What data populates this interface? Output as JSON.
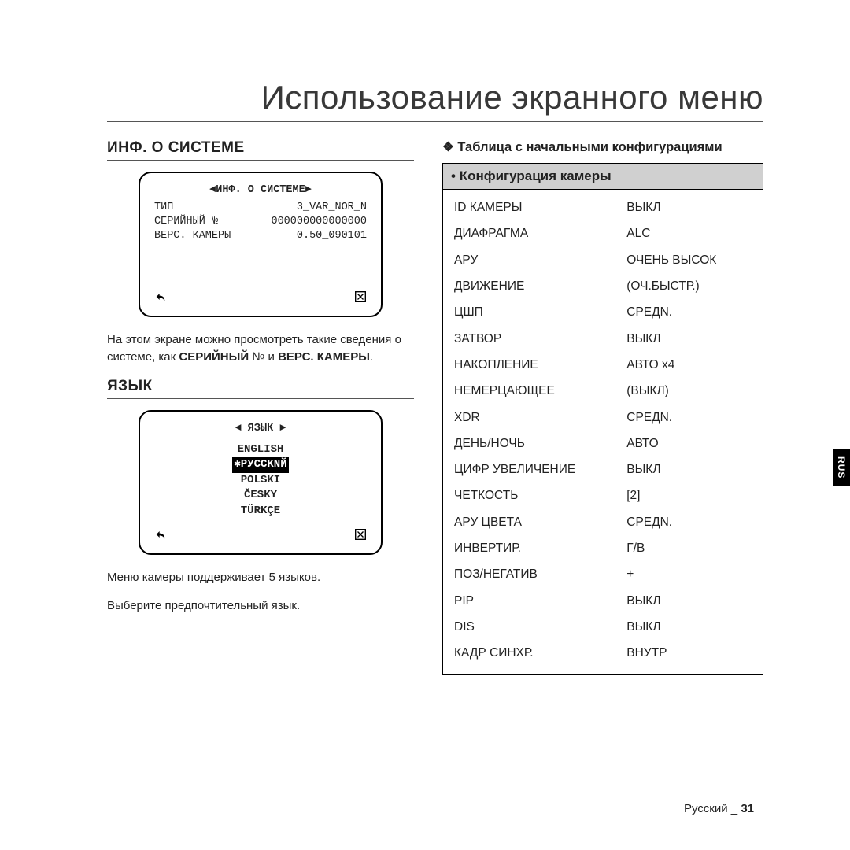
{
  "page": {
    "title": "Использование экранного меню",
    "side_tab": "RUS",
    "footer_lang": "Русский",
    "footer_sep": "_",
    "footer_page": "31"
  },
  "left": {
    "section1_heading": "ИНФ. О СИСТЕМЕ",
    "osd1": {
      "title_left_arrow": "◄",
      "title": "ИНФ. О СИСТЕМЕ",
      "title_right_arrow": "►",
      "rows": [
        {
          "k": "ТИП",
          "v": "3_VAR_NOR_N"
        },
        {
          "k": "СЕРИЙНЫЙ №",
          "v": "000000000000000"
        },
        {
          "k": "ВЕРС. КАМЕРЫ",
          "v": "0.50_090101"
        }
      ]
    },
    "desc1_pre": "На этом экране можно просмотреть такие сведения о системе, как ",
    "desc1_bold1": "СЕРИЙНЫЙ",
    "desc1_mid": " № и ",
    "desc1_bold2": "ВЕРС. КАМЕРЫ",
    "desc1_post": ".",
    "section2_heading": "ЯЗЫК",
    "osd2": {
      "title_left_arrow": "◄",
      "title": "ЯЗЫК",
      "title_right_arrow": "►",
      "langs": [
        "ENGLISH",
        "✱РУССКNЙ",
        "POLSKI",
        "ČESKY",
        "TÜRKÇE"
      ],
      "selected_index": 1
    },
    "desc2_line1": "Меню камеры поддерживает 5 языков.",
    "desc2_line2": "Выберите предпочтительный язык."
  },
  "right": {
    "table_title": "Таблица с начальными конфигурациями",
    "table_header_bullet": "•",
    "table_header": "Конфигурация камеры",
    "rows": [
      {
        "k": "ID КАМЕРЫ",
        "v": "ВЫКЛ"
      },
      {
        "k": "ДИАФРАГМА",
        "v": "ALC"
      },
      {
        "k": "АРУ",
        "v": "ОЧЕНЬ ВЫСОК"
      },
      {
        "k": "ДВИЖЕНИЕ",
        "v": "(ОЧ.БЫСТР.)"
      },
      {
        "k": "ЦШП",
        "v": "СРЕДN."
      },
      {
        "k": "ЗАТВОР",
        "v": "ВЫКЛ"
      },
      {
        "k": "НАКОПЛЕНИЕ",
        "v": "АВТО x4"
      },
      {
        "k": "НЕМЕРЦАЮЩЕЕ",
        "v": "(ВЫКЛ)"
      },
      {
        "k": "XDR",
        "v": "СРЕДN."
      },
      {
        "k": "ДЕНЬ/НОЧЬ",
        "v": "АВТО"
      },
      {
        "k": "ЦИФР УВЕЛИЧЕНИЕ",
        "v": "ВЫКЛ"
      },
      {
        "k": "ЧЕТКОСТЬ",
        "v": "[2]"
      },
      {
        "k": "АРУ ЦВЕТА",
        "v": "СРЕДN."
      },
      {
        "k": "ИНВЕРТИР.",
        "v": "Г/В"
      },
      {
        "k": "ПОЗ/НЕГАТИВ",
        "v": "+"
      },
      {
        "k": "PIP",
        "v": "ВЫКЛ"
      },
      {
        "k": "DIS",
        "v": "ВЫКЛ"
      },
      {
        "k": "КАДР СИНХР.",
        "v": "ВНУТР"
      }
    ]
  },
  "colors": {
    "text": "#222222",
    "border": "#000000",
    "table_header_bg": "#d0d0d0",
    "highlight_bg": "#000000",
    "highlight_fg": "#ffffff",
    "page_bg": "#ffffff"
  }
}
